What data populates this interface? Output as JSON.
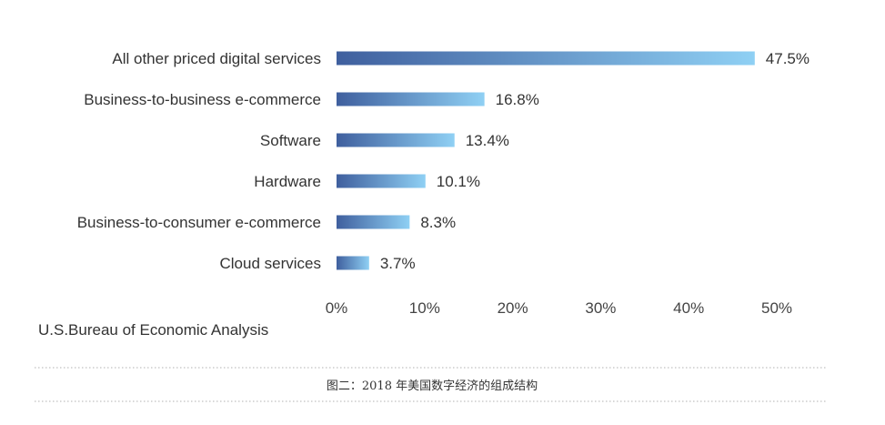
{
  "chart_data": {
    "type": "bar",
    "orientation": "horizontal",
    "categories": [
      "All other priced digital services",
      "Business-to-business e-commerce",
      "Software",
      "Hardware",
      "Business-to-consumer e-commerce",
      "Cloud services"
    ],
    "values": [
      47.5,
      16.8,
      13.4,
      10.1,
      8.3,
      3.7
    ],
    "value_labels": [
      "47.5%",
      "16.8%",
      "13.4%",
      "10.1%",
      "8.3%",
      "3.7%"
    ],
    "xlim": [
      0,
      50
    ],
    "x_ticks": [
      "0%",
      "10%",
      "20%",
      "30%",
      "40%",
      "50%"
    ],
    "grid": false,
    "legend": "none",
    "bar_gradient": {
      "start": "#3f5f9e",
      "end": "#8fd0f4"
    }
  },
  "source": "U.S.Bureau of Economic Analysis",
  "caption": "图二：2018 年美国数字经济的组成结构",
  "colors": {
    "text": "#333333",
    "divider": "#b0b0b0"
  }
}
